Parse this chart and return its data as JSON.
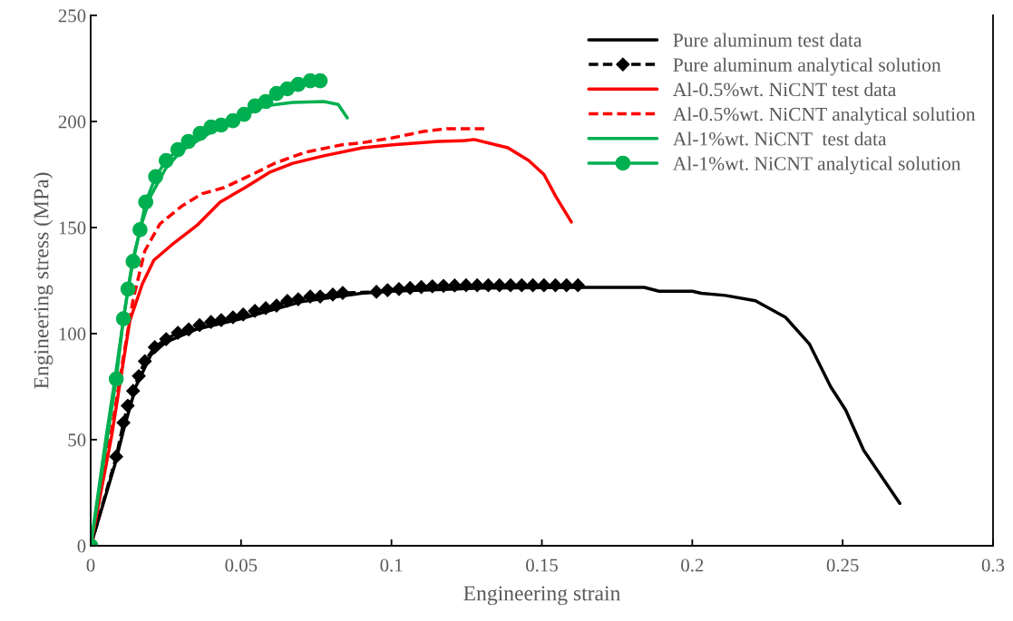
{
  "chart_data": {
    "type": "line",
    "xlabel": "Engineering strain",
    "ylabel": "Engineering stress (MPa)",
    "xlim": [
      0,
      0.3
    ],
    "xticks": [
      0,
      0.05,
      0.1,
      0.15,
      0.2,
      0.25,
      0.3
    ],
    "ylim": [
      0,
      250
    ],
    "yticks": [
      0,
      50,
      100,
      150,
      200,
      250
    ],
    "grid": false,
    "legend": "top right",
    "series": [
      {
        "name": "Pure aluminum test data",
        "color": "#000000",
        "marker": "none",
        "line_style": "solid",
        "x": [
          0,
          0.008,
          0.011,
          0.015,
          0.02,
          0.025,
          0.035,
          0.05,
          0.07,
          0.09,
          0.1,
          0.13,
          0.164,
          0.184,
          0.189,
          0.2,
          0.203,
          0.211,
          0.221,
          0.231,
          0.239,
          0.246,
          0.251,
          0.257,
          0.269
        ],
        "values": [
          0,
          38,
          55,
          75,
          90,
          96,
          102,
          107,
          115,
          119,
          120,
          121.5,
          121.8,
          121.8,
          120,
          120,
          119,
          118,
          115.5,
          107.7,
          95,
          75,
          64,
          45,
          20
        ]
      },
      {
        "name": "Pure aluminum analytical solution",
        "color": "#000000",
        "marker": "diamond",
        "line_style": "dashed",
        "x": [
          0,
          0.0085,
          0.0109,
          0.0123,
          0.0141,
          0.016,
          0.018,
          0.0213,
          0.0251,
          0.029,
          0.0326,
          0.0362,
          0.04,
          0.0434,
          0.0473,
          0.0507,
          0.0546,
          0.0582,
          0.0618,
          0.0654,
          0.069,
          0.073,
          0.0763,
          0.0805,
          0.0838,
          0.095,
          0.0987,
          0.1025,
          0.1062,
          0.1099,
          0.1136,
          0.1173,
          0.121,
          0.1248,
          0.1285,
          0.1322,
          0.1359,
          0.1396,
          0.1433,
          0.147,
          0.1507,
          0.1545,
          0.1582,
          0.162
        ],
        "values": [
          0,
          42,
          58,
          66,
          73,
          80,
          87,
          93.6,
          97.4,
          100.4,
          102,
          104,
          105.5,
          106.4,
          107.7,
          109,
          110.7,
          112,
          113.2,
          115.4,
          116.2,
          117.5,
          117.5,
          118.4,
          119.2,
          119.7,
          120.5,
          121,
          121.5,
          122,
          122.3,
          122.5,
          122.7,
          122.8,
          122.8,
          122.8,
          122.8,
          122.8,
          122.8,
          122.8,
          122.8,
          122.8,
          122.8,
          122.8
        ]
      },
      {
        "name": "Al-0.5%wt. NiCNT test data",
        "color": "#ff0000",
        "marker": "none",
        "line_style": "solid",
        "x": [
          0,
          0.007,
          0.013,
          0.0172,
          0.021,
          0.027,
          0.0353,
          0.043,
          0.0513,
          0.0594,
          0.0672,
          0.0775,
          0.0904,
          0.1004,
          0.1155,
          0.1245,
          0.1275,
          0.1387,
          0.1456,
          0.1507,
          0.1547,
          0.1598
        ],
        "values": [
          0,
          52,
          106,
          123.5,
          134.6,
          141.9,
          151,
          162,
          168.8,
          176,
          180.3,
          183.8,
          187.6,
          189,
          190.6,
          191,
          191.5,
          187.6,
          181.6,
          175,
          164.5,
          152.6
        ]
      },
      {
        "name": "Al-0.5%wt. NiCNT analytical solution",
        "color": "#ff0000",
        "marker": "none",
        "line_style": "dashed",
        "x": [
          0,
          0.007,
          0.011,
          0.0141,
          0.018,
          0.023,
          0.0302,
          0.0371,
          0.0443,
          0.0534,
          0.0612,
          0.0714,
          0.0835,
          0.0904,
          0.1004,
          0.1106,
          0.1185,
          0.1317
        ],
        "values": [
          0,
          55,
          90,
          116,
          139,
          151.7,
          160,
          166,
          168.8,
          174.8,
          180.3,
          185.5,
          189,
          190,
          192.3,
          195.3,
          196.6,
          196.6
        ]
      },
      {
        "name": "Al-1%wt. NiCNT  test data",
        "color": "#00b050",
        "marker": "none",
        "line_style": "solid",
        "x": [
          0,
          0.005,
          0.008,
          0.011,
          0.014,
          0.017,
          0.02,
          0.025,
          0.03,
          0.04,
          0.05,
          0.0573,
          0.0672,
          0.0775,
          0.0823,
          0.0853
        ],
        "values": [
          0,
          50,
          78,
          108,
          135,
          152,
          165,
          178,
          186,
          195,
          202,
          207.3,
          209,
          209.4,
          208,
          201.7
        ]
      },
      {
        "name": "Al-1%wt. NiCNT analytical solution",
        "color": "#00b050",
        "marker": "circle",
        "line_style": "solid",
        "x": [
          0,
          0.0085,
          0.0109,
          0.0124,
          0.0141,
          0.0164,
          0.0183,
          0.0216,
          0.0251,
          0.029,
          0.0325,
          0.0364,
          0.04,
          0.0434,
          0.0473,
          0.051,
          0.0546,
          0.0582,
          0.0618,
          0.0654,
          0.069,
          0.073,
          0.0763
        ],
        "values": [
          0,
          78.6,
          107,
          121,
          134,
          149,
          162,
          174,
          181.6,
          186.7,
          190.6,
          194.4,
          197.4,
          198.3,
          200.4,
          203.4,
          207.3,
          209.4,
          213.2,
          215.4,
          217.5,
          219.2,
          219.2
        ]
      }
    ]
  }
}
